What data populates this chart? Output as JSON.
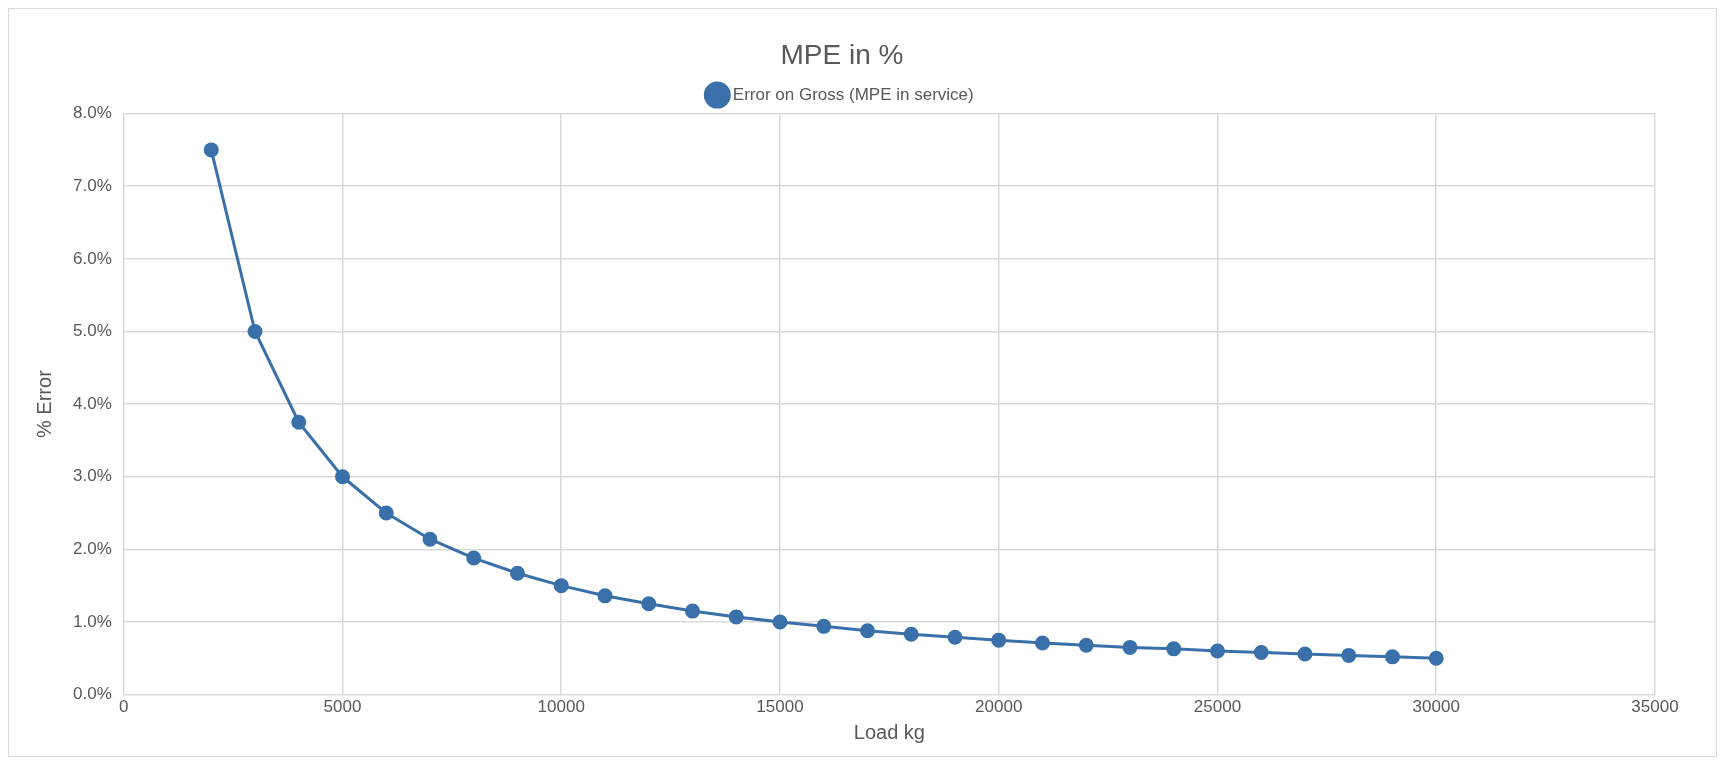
{
  "chart_data": {
    "type": "line",
    "title": "MPE in %",
    "xlabel": "Load kg",
    "ylabel": "% Error",
    "x": [
      2000,
      3000,
      4000,
      5000,
      6000,
      7000,
      8000,
      9000,
      10000,
      11000,
      12000,
      13000,
      14000,
      15000,
      16000,
      17000,
      18000,
      19000,
      20000,
      21000,
      22000,
      23000,
      24000,
      25000,
      26000,
      27000,
      28000,
      29000,
      30000
    ],
    "series": [
      {
        "name": "Error on Gross (MPE in service)",
        "color": "#3a70aa",
        "values": [
          7.5,
          5.0,
          3.75,
          3.0,
          2.5,
          2.14,
          1.88,
          1.67,
          1.5,
          1.36,
          1.25,
          1.15,
          1.07,
          1.0,
          0.94,
          0.88,
          0.83,
          0.79,
          0.75,
          0.71,
          0.68,
          0.65,
          0.63,
          0.6,
          0.58,
          0.56,
          0.54,
          0.52,
          0.5
        ]
      }
    ],
    "xlim": [
      0,
      35000
    ],
    "xticks": [
      0,
      5000,
      10000,
      15000,
      20000,
      25000,
      30000,
      35000
    ],
    "ylim": [
      0,
      8
    ],
    "yticks": [
      {
        "value": 0,
        "label": "0.0%"
      },
      {
        "value": 1,
        "label": "1.0%"
      },
      {
        "value": 2,
        "label": "2.0%"
      },
      {
        "value": 3,
        "label": "3.0%"
      },
      {
        "value": 4,
        "label": "4.0%"
      },
      {
        "value": 5,
        "label": "5.0%"
      },
      {
        "value": 6,
        "label": "6.0%"
      },
      {
        "value": 7,
        "label": "7.0%"
      },
      {
        "value": 8,
        "label": "8.0%"
      }
    ],
    "grid": true,
    "legend": "top",
    "marker": "circle",
    "line_style": "solid"
  }
}
